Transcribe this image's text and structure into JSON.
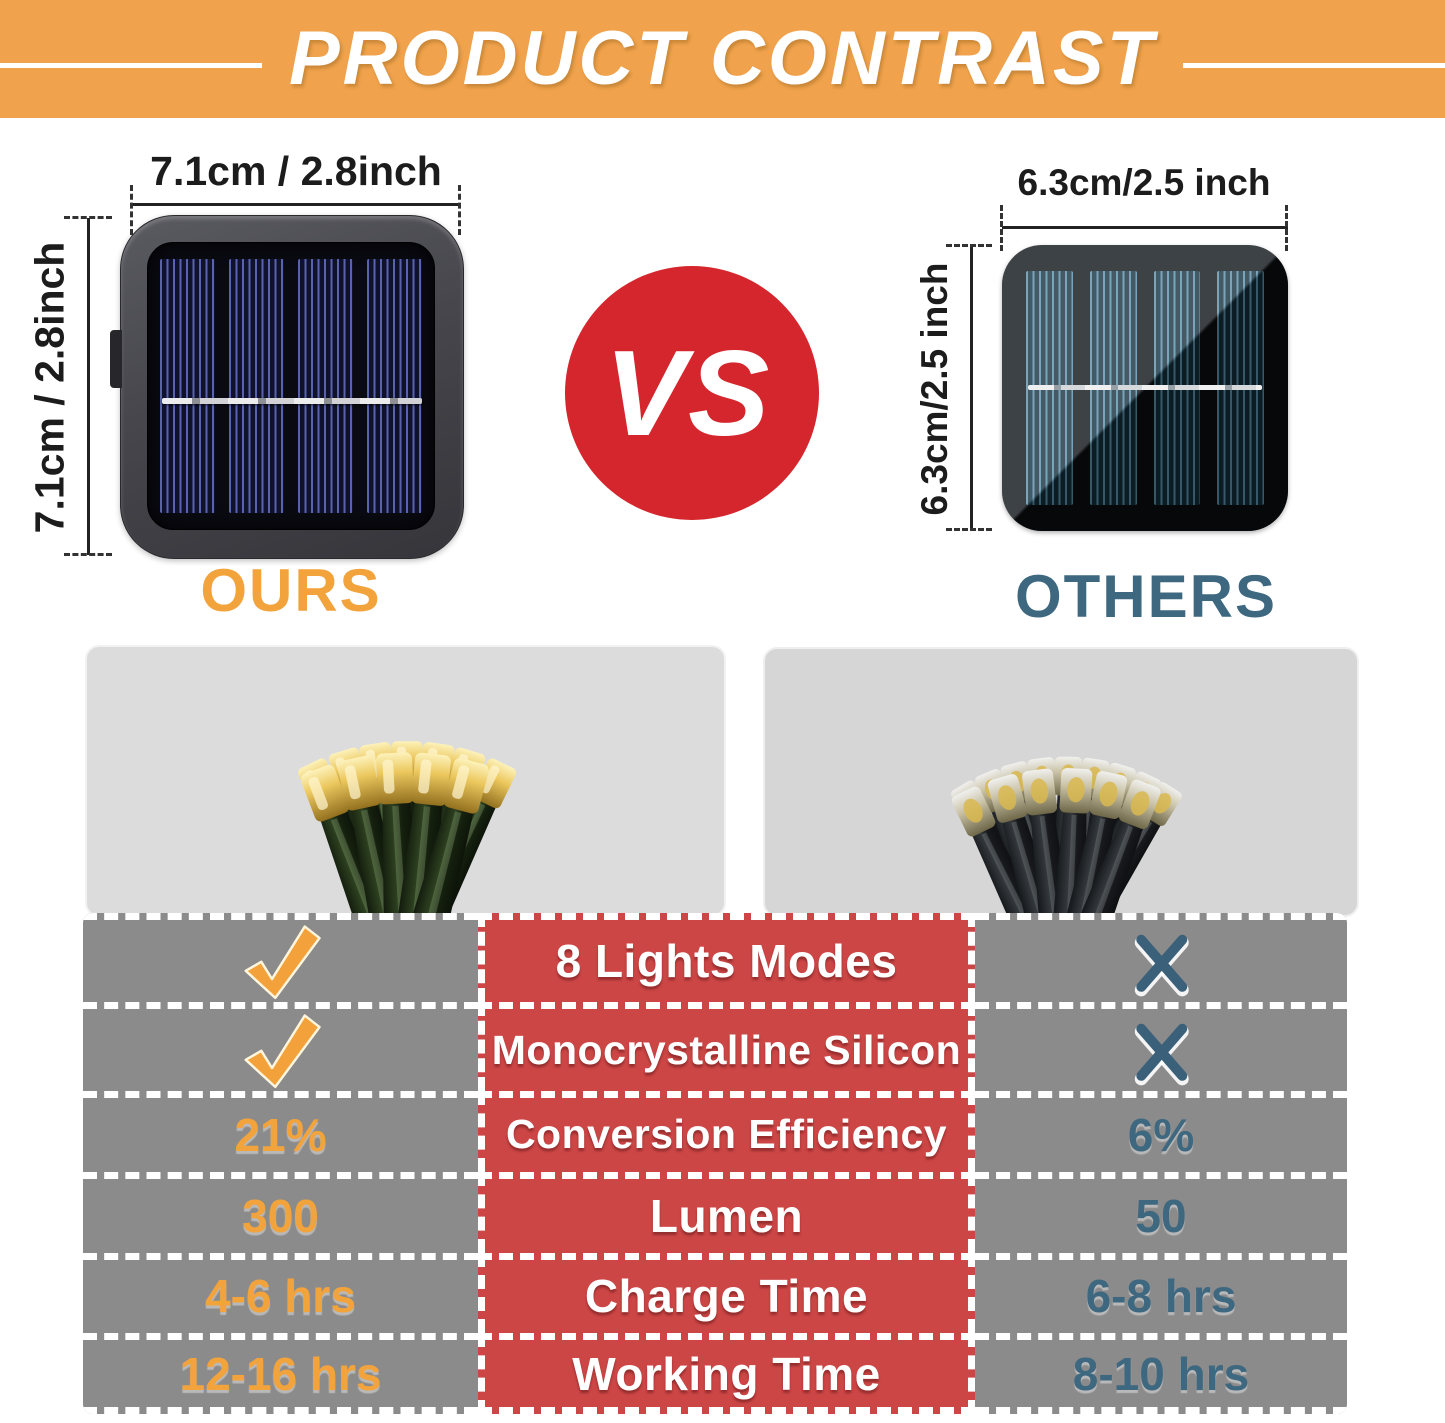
{
  "header": {
    "title": "PRODUCT CONTRAST"
  },
  "versus": {
    "label": "VS"
  },
  "ours": {
    "name": "OURS",
    "top_dimension": "7.1cm / 2.8inch",
    "side_dimension": "7.1cm / 2.8inch"
  },
  "others": {
    "name": "OTHERS",
    "top_dimension": "6.3cm/2.5 inch",
    "side_dimension": "6.3cm/2.5 inch"
  },
  "comparison_table": {
    "rows": [
      {
        "feature": "8 Lights Modes",
        "ours": {
          "type": "check"
        },
        "others": {
          "type": "cross"
        }
      },
      {
        "feature": "Monocrystalline Silicon",
        "ours": {
          "type": "check"
        },
        "others": {
          "type": "cross"
        }
      },
      {
        "feature": "Conversion Efficiency",
        "ours": {
          "type": "text",
          "value": "21%"
        },
        "others": {
          "type": "text",
          "value": "6%"
        }
      },
      {
        "feature": "Lumen",
        "ours": {
          "type": "text",
          "value": "300"
        },
        "others": {
          "type": "text",
          "value": "50"
        }
      },
      {
        "feature": "Charge Time",
        "ours": {
          "type": "text",
          "value": "4-6 hrs"
        },
        "others": {
          "type": "text",
          "value": "6-8 hrs"
        }
      },
      {
        "feature": "Working Time",
        "ours": {
          "type": "text",
          "value": "12-16 hrs"
        },
        "others": {
          "type": "text",
          "value": "8-10 hrs"
        }
      }
    ]
  },
  "colors": {
    "header_bg": "#F0A24C",
    "header_text": "#FFFFFF",
    "vs_circle": "#D4262C",
    "ours_accent": "#F2A33C",
    "others_accent": "#3E6880",
    "table_row_bg": "#8B8B8B",
    "table_feature_bg": "#CD4646",
    "table_feature_text": "#FFFFFF",
    "check_color": "#F2A13B",
    "cross_color": "#3B607A",
    "dimension_text": "#1C1C1C"
  }
}
